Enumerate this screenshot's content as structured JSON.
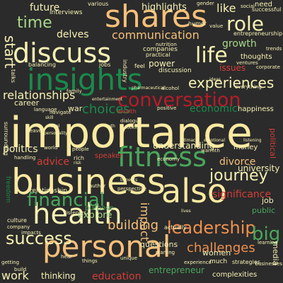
{
  "word_cloud": {
    "palette": {
      "background": "#2b2b2b",
      "cream": "#f7f1b3",
      "peach": "#f6c07a",
      "orange": "#f0904e",
      "red": "#d43d38",
      "crimson": "#b51d2a",
      "light_green": "#a8d88a",
      "green": "#49a75b",
      "dark_green": "#1a8a4c",
      "pale_yellow": "#fbe9a0"
    },
    "words": [
      {
        "text": "importance",
        "color": "#fbe9a0"
      },
      {
        "text": "business",
        "color": "#fbe9a0"
      },
      {
        "text": "insights",
        "color": "#1a8a4c"
      },
      {
        "text": "shares",
        "color": "#f6c07a"
      },
      {
        "text": "discuss",
        "color": "#f7f1b3"
      },
      {
        "text": "personal",
        "color": "#f6c07a"
      },
      {
        "text": "health",
        "color": "#f7f1b3"
      },
      {
        "text": "also",
        "color": "#fbe9a0"
      },
      {
        "text": "fitness",
        "color": "#49a75b"
      },
      {
        "text": "conversation",
        "color": "#b51d2a"
      },
      {
        "text": "financial",
        "color": "#49a75b"
      },
      {
        "text": "leadership",
        "color": "#f0904e"
      },
      {
        "text": "success",
        "color": "#f7f1b3"
      },
      {
        "text": "journey",
        "color": "#f7f1b3"
      },
      {
        "text": "experiences",
        "color": "#f7f1b3"
      },
      {
        "text": "communication",
        "color": "#f6c07a"
      },
      {
        "text": "time",
        "color": "#a8d88a"
      },
      {
        "text": "role",
        "color": "#f7f1b3"
      },
      {
        "text": "life",
        "color": "#f7f1b3"
      },
      {
        "text": "start",
        "color": "#f7f1b3"
      },
      {
        "text": "big",
        "color": "#49a75b"
      },
      {
        "text": "challenges",
        "color": "#f0904e"
      },
      {
        "text": "choices",
        "color": "#1a8a4c"
      },
      {
        "text": "relationships",
        "color": "#f7f1b3"
      },
      {
        "text": "building",
        "color": "#f6c07a"
      },
      {
        "text": "impact",
        "color": "#f6c07a"
      },
      {
        "text": "growth",
        "color": "#a8d88a"
      },
      {
        "text": "economic",
        "color": "#1a8a4c"
      },
      {
        "text": "significance",
        "color": "#d43d38"
      },
      {
        "text": "politics",
        "color": "#f7f1b3"
      },
      {
        "text": "divorce",
        "color": "#f6c07a"
      },
      {
        "text": "education",
        "color": "#d43d38"
      },
      {
        "text": "entrepreneur",
        "color": "#49a75b"
      },
      {
        "text": "future",
        "color": "#f7f1b3"
      },
      {
        "text": "highlights",
        "color": "#f7f1b3"
      },
      {
        "text": "like",
        "color": "#f7f1b3"
      },
      {
        "text": "delves",
        "color": "#f7f1b3"
      },
      {
        "text": "advice",
        "color": "#d43d38"
      },
      {
        "text": "understanding",
        "color": "#f7f1b3"
      },
      {
        "text": "university",
        "color": "#f7f1b3"
      },
      {
        "text": "work",
        "color": "#f7f1b3"
      },
      {
        "text": "thinking",
        "color": "#f7f1b3"
      },
      {
        "text": "explore",
        "color": "#a8d88a"
      },
      {
        "text": "purpose",
        "color": "#49a75b"
      },
      {
        "text": "power",
        "color": "#f7f1b3"
      },
      {
        "text": "issues",
        "color": "#d43d38"
      },
      {
        "text": "happiness",
        "color": "#f7f1b3"
      },
      {
        "text": "money",
        "color": "#f7f1b3"
      },
      {
        "text": "questions",
        "color": "#f7f1b3"
      },
      {
        "text": "women",
        "color": "#f7f1b3"
      },
      {
        "text": "career",
        "color": "#f7f1b3"
      },
      {
        "text": "war",
        "color": "#f7f1b3"
      },
      {
        "text": "public",
        "color": "#49a75b"
      },
      {
        "text": "job",
        "color": "#f7f1b3"
      },
      {
        "text": "political",
        "color": "#d43d38"
      },
      {
        "text": "media",
        "color": "#f7f1b3"
      },
      {
        "text": "interviews",
        "color": "#f7f1b3"
      },
      {
        "text": "thoughts",
        "color": "#f7f1b3"
      },
      {
        "text": "discussion",
        "color": "#f7f1b3"
      },
      {
        "text": "companies",
        "color": "#f7f1b3"
      },
      {
        "text": "freedom",
        "color": "#1a8a4c"
      },
      {
        "text": "relationship",
        "color": "#f7f1b3"
      },
      {
        "text": "speaker",
        "color": "#d43d38"
      },
      {
        "text": "complexities",
        "color": "#f7f1b3"
      },
      {
        "text": "much",
        "color": "#f7f1b3"
      },
      {
        "text": "strategies",
        "color": "#f7f1b3"
      },
      {
        "text": "culture",
        "color": "#f7f1b3"
      },
      {
        "text": "industry",
        "color": "#f7f1b3"
      },
      {
        "text": "balancing",
        "color": "#f7f1b3"
      },
      {
        "text": "practical",
        "color": "#f7f1b3"
      },
      {
        "text": "entrepreneurship",
        "color": "#f7f1b3"
      },
      {
        "text": "various",
        "color": "#f7f1b3"
      },
      {
        "text": "successful",
        "color": "#f7f1b3"
      },
      {
        "text": "need",
        "color": "#f7f1b3"
      },
      {
        "text": "social",
        "color": "#f7f1b3"
      },
      {
        "text": "humor",
        "color": "#f7f1b3"
      },
      {
        "text": "nutrition",
        "color": "#f7f1b3"
      },
      {
        "text": "value",
        "color": "#f7f1b3"
      },
      {
        "text": "jobs",
        "color": "#f7f1b3"
      },
      {
        "text": "feel",
        "color": "#f7f1b3"
      },
      {
        "text": "talks",
        "color": "#f7f1b3"
      },
      {
        "text": "alcohol",
        "color": "#f7f1b3"
      },
      {
        "text": "navigate",
        "color": "#f7f1b3"
      },
      {
        "text": "language",
        "color": "#f7f1b3"
      },
      {
        "text": "dialogue",
        "color": "#f7f1b3"
      },
      {
        "text": "surrounding",
        "color": "#f7f1b3"
      },
      {
        "text": "positive",
        "color": "#f7f1b3"
      },
      {
        "text": "wealth",
        "color": "#d43d38"
      },
      {
        "text": "author",
        "color": "#f7f1b3"
      },
      {
        "text": "listeners",
        "color": "#f7f1b3"
      },
      {
        "text": "handling",
        "color": "#f7f1b3"
      },
      {
        "text": "economy",
        "color": "#f7f1b3"
      },
      {
        "text": "businesses",
        "color": "#f7f1b3"
      },
      {
        "text": "experience",
        "color": "#f7f1b3"
      },
      {
        "text": "starting",
        "color": "#f7f1b3"
      },
      {
        "text": "learning",
        "color": "#f7f1b3"
      },
      {
        "text": "perspective",
        "color": "#f7f1b3"
      },
      {
        "text": "ventures",
        "color": "#f7f1b3"
      },
      {
        "text": "corporate",
        "color": "#f7f1b3"
      },
      {
        "text": "gender",
        "color": "#f7f1b3"
      },
      {
        "text": "trends",
        "color": "#f7f1b3"
      },
      {
        "text": "leave",
        "color": "#f7f1b3"
      },
      {
        "text": "build",
        "color": "#f7f1b3"
      },
      {
        "text": "getting",
        "color": "#f7f1b3"
      },
      {
        "text": "impacts",
        "color": "#f7f1b3"
      },
      {
        "text": "unique",
        "color": "#f7f1b3"
      },
      {
        "text": "things",
        "color": "#f7f1b3"
      },
      {
        "text": "world",
        "color": "#f7f1b3"
      },
      {
        "text": "people",
        "color": "#f7f1b3"
      },
      {
        "text": "everything",
        "color": "#f7f1b3"
      },
      {
        "text": "family",
        "color": "#f7f1b3"
      },
      {
        "text": "pharmaceutical",
        "color": "#f7f1b3"
      },
      {
        "text": "warmth",
        "color": "#f7f1b3"
      },
      {
        "text": "listening",
        "color": "#f7f1b3"
      },
      {
        "text": "emotional",
        "color": "#f7f1b3"
      },
      {
        "text": "intimacy",
        "color": "#f7f1b3"
      },
      {
        "text": "entertainment",
        "color": "#f7f1b3"
      },
      {
        "text": "cooking",
        "color": "#f7f1b3"
      },
      {
        "text": "skill",
        "color": "#f7f1b3"
      },
      {
        "text": "legal",
        "color": "#f7f1b3"
      },
      {
        "text": "truth",
        "color": "#f7f1b3"
      },
      {
        "text": "risk",
        "color": "#f7f1b3"
      },
      {
        "text": "rich",
        "color": "#f7f1b3"
      },
      {
        "text": "benefits",
        "color": "#f7f1b3"
      },
      {
        "text": "lives",
        "color": "#f7f1b3"
      },
      {
        "text": "actually",
        "color": "#f7f1b3"
      },
      {
        "text": "hear",
        "color": "#f7f1b3"
      },
      {
        "text": "company",
        "color": "#f7f1b3"
      },
      {
        "text": "personality",
        "color": "#f7f1b3"
      },
      {
        "text": "ideas",
        "color": "#f7f1b3"
      }
    ]
  }
}
